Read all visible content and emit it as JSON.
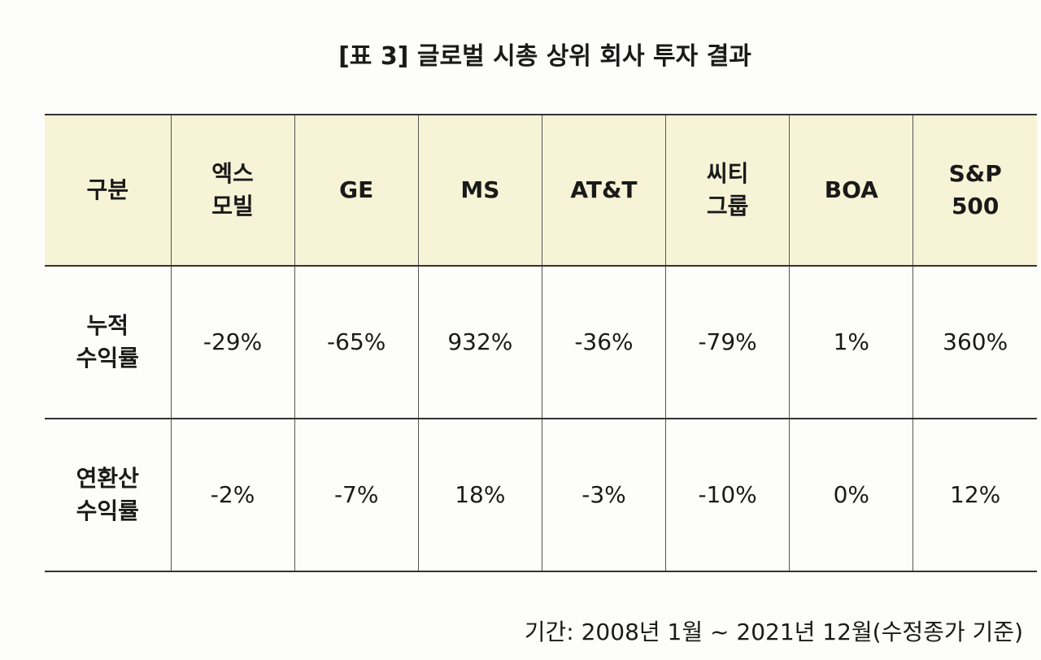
{
  "title": "[표 3] 글로벌 시총 상위 회사 투자 결과",
  "table": {
    "header": [
      [
        "구분"
      ],
      [
        "엑스",
        "모빌"
      ],
      [
        "GE"
      ],
      [
        "MS"
      ],
      [
        "AT&T"
      ],
      [
        "씨티",
        "그룹"
      ],
      [
        "BOA"
      ],
      [
        "S&P",
        "500"
      ]
    ],
    "rows": [
      [
        [
          "누적",
          "수익률"
        ],
        "-29%",
        "-65%",
        "932%",
        "-36%",
        "-79%",
        "1%",
        "360%"
      ],
      [
        [
          "연환산",
          "수익률"
        ],
        "-2%",
        "-7%",
        "18%",
        "-3%",
        "-10%",
        "0%",
        "12%"
      ]
    ]
  },
  "footnote": "기간: 2008년 1월 ~ 2021년 12월(수정종가 기준)"
}
